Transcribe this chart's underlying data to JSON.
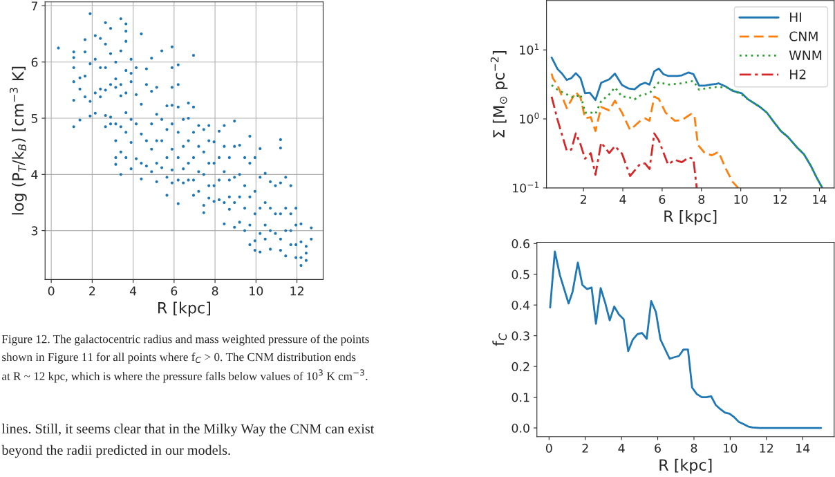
{
  "chart_data": [
    {
      "type": "scatter",
      "xlabel": "R [kpc]",
      "ylabel": "log (P$_{T}$/k$_{B}$) [cm$^{−3}$ K]",
      "xlim": [
        -0.3,
        13.28
      ],
      "ylim": [
        2.13,
        7.07
      ],
      "xticks": [
        0,
        2,
        4,
        6,
        8,
        10,
        12
      ],
      "yticks": [
        3,
        4,
        5,
        6,
        7
      ],
      "grid": true,
      "marker": "circle",
      "series": [
        {
          "color": "#1f77b4",
          "x": [
            0.35,
            1.1,
            1.1,
            1.1,
            1.1,
            1.1,
            1.1,
            1.4,
            1.4,
            1.4,
            1.65,
            1.65,
            1.65,
            1.65,
            1.9,
            1.9,
            1.9,
            1.9,
            2.15,
            2.15,
            2.15,
            2.15,
            2.4,
            2.4,
            2.4,
            2.4,
            2.65,
            2.65,
            2.65,
            2.65,
            2.65,
            2.65,
            2.9,
            2.9,
            2.9,
            2.9,
            2.9,
            3.15,
            3.15,
            3.15,
            3.15,
            3.15,
            3.15,
            3.15,
            3.4,
            3.4,
            3.4,
            3.4,
            3.4,
            3.4,
            3.4,
            3.65,
            3.65,
            3.65,
            3.65,
            3.65,
            3.65,
            3.65,
            3.65,
            3.9,
            3.9,
            3.9,
            3.9,
            3.9,
            3.9,
            4.15,
            4.15,
            4.15,
            4.15,
            4.4,
            4.4,
            4.4,
            4.4,
            4.4,
            4.65,
            4.65,
            4.65,
            4.65,
            4.9,
            4.9,
            4.9,
            4.9,
            4.9,
            5.15,
            5.15,
            5.15,
            5.15,
            5.15,
            5.4,
            5.4,
            5.4,
            5.4,
            5.65,
            5.65,
            5.65,
            5.65,
            5.65,
            5.9,
            5.9,
            5.9,
            5.9,
            5.9,
            5.9,
            5.9,
            5.9,
            6.2,
            6.2,
            6.2,
            6.2,
            6.2,
            6.2,
            6.2,
            6.45,
            6.45,
            6.45,
            6.45,
            6.7,
            6.7,
            6.7,
            6.7,
            6.7,
            6.95,
            6.95,
            6.95,
            6.95,
            6.95,
            6.95,
            7.2,
            7.2,
            7.2,
            7.2,
            7.45,
            7.45,
            7.45,
            7.45,
            7.45,
            7.7,
            7.7,
            7.7,
            7.7,
            7.7,
            7.95,
            7.95,
            7.95,
            7.95,
            8.2,
            8.2,
            8.2,
            8.2,
            8.45,
            8.45,
            8.45,
            8.45,
            8.45,
            8.7,
            8.7,
            8.7,
            8.7,
            8.95,
            8.95,
            8.95,
            8.95,
            8.95,
            9.2,
            9.2,
            9.2,
            9.2,
            9.45,
            9.45,
            9.45,
            9.45,
            9.7,
            9.7,
            9.7,
            9.7,
            9.7,
            9.95,
            9.95,
            9.95,
            9.95,
            9.95,
            10.2,
            10.2,
            10.2,
            10.2,
            10.2,
            10.45,
            10.45,
            10.45,
            10.45,
            10.7,
            10.7,
            10.7,
            10.7,
            10.95,
            10.95,
            10.95,
            11.2,
            11.2,
            11.2,
            11.2,
            11.2,
            11.2,
            11.45,
            11.45,
            11.45,
            11.45,
            11.7,
            11.7,
            11.7,
            11.7,
            11.95,
            11.95,
            11.95,
            11.95,
            12.2,
            12.2,
            12.2,
            12.2,
            12.45,
            12.45,
            12.45,
            12.7,
            12.7
          ],
          "values": [
            6.25,
            6.18,
            6.08,
            5.9,
            5.65,
            5.32,
            4.85,
            5.72,
            5.52,
            4.97,
            6.4,
            6.18,
            5.75,
            5.38,
            6.86,
            5.97,
            5.3,
            5.04,
            6.47,
            6.05,
            5.45,
            5.09,
            6.42,
            5.9,
            5.52,
            5.38,
            6.7,
            6.32,
            5.9,
            5.5,
            5.05,
            4.85,
            6.6,
            6.15,
            5.6,
            5.02,
            4.9,
            6.0,
            5.7,
            5.55,
            4.9,
            4.6,
            4.3,
            4.18,
            6.77,
            6.2,
            5.6,
            5.4,
            4.85,
            4.4,
            4.0,
            6.68,
            6.55,
            6.37,
            5.85,
            5.45,
            5.1,
            4.75,
            4.3,
            6.05,
            5.8,
            5.65,
            4.98,
            4.57,
            4.1,
            5.9,
            5.42,
            4.9,
            4.28,
            6.5,
            5.25,
            4.72,
            4.2,
            3.92,
            5.88,
            5.6,
            4.6,
            4.15,
            6.07,
            5.48,
            4.9,
            4.45,
            4.05,
            5.55,
            5.07,
            4.6,
            4.2,
            3.87,
            6.2,
            4.98,
            4.6,
            4.12,
            5.22,
            4.8,
            4.3,
            3.95,
            3.63,
            6.27,
            5.9,
            5.55,
            5.23,
            4.9,
            4.45,
            4.08,
            3.85,
            5.95,
            5.6,
            5.2,
            4.75,
            4.3,
            3.9,
            3.48,
            4.98,
            4.5,
            4.1,
            3.85,
            5.27,
            5.0,
            4.6,
            4.2,
            3.9,
            6.12,
            5.2,
            4.75,
            4.3,
            3.9,
            3.63,
            4.87,
            4.5,
            4.05,
            3.7,
            4.8,
            4.4,
            4.0,
            3.45,
            3.32,
            4.87,
            4.6,
            4.2,
            3.8,
            3.58,
            4.58,
            4.2,
            3.8,
            3.52,
            4.77,
            4.3,
            3.9,
            3.55,
            4.87,
            4.5,
            4.05,
            3.5,
            3.12,
            4.3,
            3.9,
            3.6,
            3.38,
            4.95,
            4.5,
            3.95,
            3.5,
            3.06,
            4.52,
            4.0,
            3.6,
            3.15,
            4.3,
            3.8,
            3.4,
            3.0,
            4.68,
            4.2,
            3.6,
            3.1,
            2.75,
            4.3,
            3.7,
            3.3,
            2.82,
            2.65,
            4.46,
            3.95,
            3.4,
            2.95,
            2.62,
            4.02,
            3.5,
            3.1,
            2.85,
            3.87,
            3.4,
            3.0,
            2.67,
            3.8,
            3.3,
            2.95,
            4.62,
            4.47,
            3.85,
            3.3,
            2.85,
            2.65,
            3.95,
            3.4,
            3.0,
            2.55,
            3.8,
            3.3,
            3.0,
            2.75,
            3.4,
            3.1,
            2.75,
            2.52,
            3.12,
            2.8,
            2.52,
            2.38,
            2.72,
            2.6,
            2.47,
            3.05,
            2.85
          ]
        }
      ],
      "annotations": [
        "Figure 12. The galactocentric radius and mass weighted pressure of the points",
        "shown in Figure 11 for all points where f$_{C}$ > 0. The CNM distribution ends",
        "at R ~ 12 kpc, which is where the pressure falls below values of 10$^{3}$ K cm$^{−3}$.",
        "lines. Still, it seems clear that in the Milky Way the CNM can exist",
        "beyond the radii predicted in our models."
      ]
    },
    {
      "type": "line",
      "xlabel": "R [kpc]",
      "ylabel": "Σ [M$_{⊙}$ pc$^{−2}$]",
      "log": "y",
      "xlim": [
        0.12,
        14.75
      ],
      "ylim": [
        0.1,
        52
      ],
      "xticks": [
        2,
        4,
        6,
        8,
        10,
        12,
        14
      ],
      "yticks": [
        {
          "value": 0.1,
          "label": "10$^{−1}$"
        },
        {
          "value": 1,
          "label": "10$^{0}$"
        },
        {
          "value": 10,
          "label": "10$^{1}$"
        }
      ],
      "grid": false,
      "legend": "top right",
      "series": [
        {
          "name": "HI",
          "color": "#1f77b4",
          "line_style": "solid",
          "x": [
            0.38,
            0.56,
            0.68,
            0.91,
            1.15,
            1.38,
            1.61,
            1.85,
            2.08,
            2.32,
            2.61,
            2.9,
            3.31,
            3.6,
            3.96,
            4.31,
            4.6,
            4.89,
            5.13,
            5.36,
            5.6,
            5.83,
            6.06,
            6.3,
            6.77,
            7.0,
            7.35,
            7.59,
            7.88,
            8.17,
            8.46,
            8.76,
            8.87,
            9.28,
            9.58,
            10.04,
            10.34,
            10.98,
            11.33,
            11.68,
            12.04,
            12.39,
            12.85,
            13.21,
            13.56,
            13.85,
            14.14
          ],
          "values": [
            7.77,
            6.16,
            5.28,
            4.53,
            3.66,
            3.9,
            4.6,
            3.9,
            2.36,
            2.4,
            1.88,
            3.34,
            3.74,
            4.53,
            3.09,
            2.75,
            2.69,
            3.14,
            3.34,
            3.14,
            4.9,
            5.36,
            4.46,
            4.2,
            4.2,
            4.27,
            4.71,
            4.46,
            3.04,
            3.04,
            3.14,
            3.21,
            3.28,
            2.9,
            2.55,
            2.36,
            1.95,
            1.49,
            1.23,
            0.905,
            0.666,
            0.55,
            0.389,
            0.309,
            0.21,
            0.143,
            0.101
          ]
        },
        {
          "name": "CNM",
          "color": "#ff7f0e",
          "line_style": "dashed",
          "x": [
            0.38,
            0.44,
            0.68,
            1.15,
            1.61,
            1.85,
            2.08,
            2.37,
            2.61,
            2.9,
            3.31,
            3.6,
            3.96,
            4.37,
            4.89,
            5.13,
            5.36,
            5.6,
            5.83,
            6.18,
            6.65,
            7.0,
            7.47,
            7.64,
            7.82,
            8.17,
            8.52,
            8.87,
            9.22,
            9.58,
            9.87
          ],
          "values": [
            4.53,
            3.9,
            3.09,
            1.43,
            2.45,
            2.03,
            1.02,
            1.06,
            0.666,
            1.49,
            1.33,
            1.83,
            1.23,
            0.692,
            0.94,
            1.02,
            0.94,
            2.1,
            1.95,
            1.23,
            0.94,
            0.96,
            1.18,
            1.14,
            0.42,
            0.32,
            0.297,
            0.334,
            0.195,
            0.123,
            0.1
          ]
        },
        {
          "name": "WNM",
          "color": "#2ca02c",
          "line_style": "dotted",
          "x": [
            0.38,
            0.68,
            1.15,
            1.5,
            1.85,
            2.08,
            2.32,
            2.61,
            2.9,
            3.31,
            3.6,
            3.96,
            4.31,
            4.6,
            4.89,
            5.36,
            5.83,
            6.3,
            7.0,
            7.59,
            7.88,
            8.17,
            8.76,
            9.28,
            9.58,
            10.04,
            10.34,
            10.98,
            11.33,
            11.68,
            12.04,
            12.39,
            12.85,
            13.21,
            13.56,
            13.85,
            14.14
          ],
          "values": [
            3.09,
            2.65,
            2.27,
            2.03,
            2.27,
            1.23,
            1.25,
            1.18,
            1.81,
            2.27,
            2.86,
            2.1,
            2.07,
            1.92,
            2.19,
            2.36,
            3.39,
            3.14,
            3.28,
            3.55,
            2.65,
            2.75,
            2.9,
            2.86,
            2.6,
            2.27,
            1.95,
            1.49,
            1.23,
            0.905,
            0.666,
            0.55,
            0.389,
            0.309,
            0.21,
            0.143,
            0.101
          ]
        },
        {
          "name": "H2",
          "color": "#d62728",
          "line_style": "dashdot",
          "x": [
            0.38,
            0.5,
            0.68,
            1.15,
            1.38,
            1.61,
            1.85,
            2.08,
            2.37,
            2.61,
            2.9,
            3.31,
            3.6,
            3.96,
            4.37,
            4.89,
            5.13,
            5.36,
            5.6,
            5.83,
            6.3,
            6.65,
            7.0,
            7.35,
            7.59,
            7.76
          ],
          "values": [
            2.1,
            1.55,
            0.977,
            0.346,
            0.36,
            0.617,
            0.427,
            0.265,
            0.32,
            0.155,
            0.454,
            0.32,
            0.404,
            0.314,
            0.149,
            0.224,
            0.227,
            0.188,
            0.617,
            0.49,
            0.219,
            0.255,
            0.236,
            0.276,
            0.265,
            0.1
          ]
        }
      ]
    },
    {
      "type": "line",
      "xlabel": "R [kpc]",
      "ylabel": "f$_{C}$",
      "xlim": [
        -0.67,
        15.74
      ],
      "ylim": [
        -0.0285,
        0.604
      ],
      "xticks": [
        0,
        2,
        4,
        6,
        8,
        10,
        12,
        14
      ],
      "yticks": [
        {
          "value": 0,
          "label": "0.0"
        },
        {
          "value": 0.1,
          "label": "0.1"
        },
        {
          "value": 0.2,
          "label": "0.2"
        },
        {
          "value": 0.3,
          "label": "0.3"
        },
        {
          "value": 0.4,
          "label": "0.4"
        },
        {
          "value": 0.5,
          "label": "0.5"
        },
        {
          "value": 0.6,
          "label": "0.6"
        }
      ],
      "grid": false,
      "series": [
        {
          "color": "#1f77b4",
          "line_style": "solid",
          "x": [
            0.06,
            0.32,
            0.6,
            1.08,
            1.3,
            1.59,
            1.84,
            2.1,
            2.35,
            2.59,
            2.85,
            3.1,
            3.35,
            3.6,
            3.86,
            4.12,
            4.37,
            4.62,
            4.88,
            5.13,
            5.39,
            5.64,
            5.9,
            6.15,
            6.4,
            6.66,
            6.91,
            7.17,
            7.42,
            7.67,
            7.9,
            8.16,
            8.44,
            8.69,
            8.95,
            9.2,
            9.45,
            9.71,
            9.96,
            10.22,
            10.47,
            10.72,
            10.98,
            11.23,
            11.65,
            15.02
          ],
          "values": [
            0.392,
            0.574,
            0.497,
            0.405,
            0.443,
            0.538,
            0.465,
            0.452,
            0.457,
            0.339,
            0.455,
            0.407,
            0.35,
            0.395,
            0.369,
            0.354,
            0.25,
            0.287,
            0.305,
            0.309,
            0.29,
            0.413,
            0.377,
            0.288,
            0.257,
            0.225,
            0.23,
            0.234,
            0.255,
            0.255,
            0.131,
            0.11,
            0.1,
            0.1,
            0.103,
            0.075,
            0.0615,
            0.05,
            0.0465,
            0.035,
            0.02,
            0.0128,
            0.005,
            0.0015,
            0,
            0
          ]
        }
      ]
    }
  ]
}
